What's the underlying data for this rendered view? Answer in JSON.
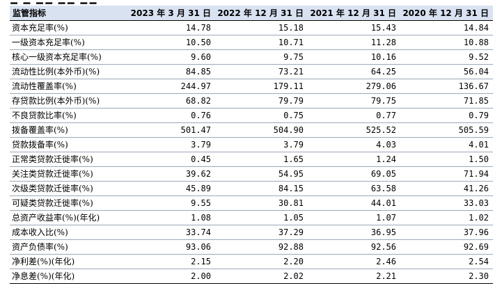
{
  "header": {
    "indicator": "监管指标",
    "periods": [
      "2023 年 3 月 31 日",
      "2022 年 12 月 31 日",
      "2021 年 12 月 31 日",
      "2020 年 12 月 31 日"
    ]
  },
  "rows": [
    {
      "label": "资本充足率(%)",
      "values": [
        "14.78",
        "15.18",
        "15.43",
        "14.84"
      ]
    },
    {
      "label": "一级资本充足率(%)",
      "values": [
        "10.50",
        "10.71",
        "11.28",
        "10.88"
      ]
    },
    {
      "label": "核心一级资本充足率(%)",
      "values": [
        "9.60",
        "9.75",
        "10.16",
        "9.52"
      ]
    },
    {
      "label": "流动性比例(本外币)(%)",
      "values": [
        "84.85",
        "73.21",
        "64.25",
        "56.04"
      ]
    },
    {
      "label": "流动性覆盖率(%)",
      "values": [
        "244.97",
        "179.11",
        "279.06",
        "136.67"
      ]
    },
    {
      "label": "存贷款比例(本外币)(%)",
      "values": [
        "68.82",
        "79.79",
        "79.75",
        "71.85"
      ]
    },
    {
      "label": "不良贷款比率(%)",
      "values": [
        "0.76",
        "0.75",
        "0.77",
        "0.79"
      ]
    },
    {
      "label": "拨备覆盖率(%)",
      "values": [
        "501.47",
        "504.90",
        "525.52",
        "505.59"
      ]
    },
    {
      "label": "贷款拨备率(%)",
      "values": [
        "3.79",
        "3.79",
        "4.03",
        "4.01"
      ]
    },
    {
      "label": "正常类贷款迁徙率(%)",
      "values": [
        "0.45",
        "1.65",
        "1.24",
        "1.50"
      ]
    },
    {
      "label": "关注类贷款迁徙率(%)",
      "values": [
        "39.62",
        "54.95",
        "69.05",
        "71.94"
      ]
    },
    {
      "label": "次级类贷款迁徙率(%)",
      "values": [
        "45.89",
        "84.15",
        "63.58",
        "41.26"
      ]
    },
    {
      "label": "可疑类贷款迁徙率(%)",
      "values": [
        "9.55",
        "30.81",
        "44.01",
        "33.03"
      ]
    },
    {
      "label": "总资产收益率(%)(年化)",
      "values": [
        "1.08",
        "1.05",
        "1.07",
        "1.02"
      ]
    },
    {
      "label": "成本收入比(%)",
      "values": [
        "33.74",
        "37.29",
        "36.95",
        "37.96"
      ]
    },
    {
      "label": "资产负债率(%)",
      "values": [
        "93.06",
        "92.88",
        "92.56",
        "92.69"
      ]
    },
    {
      "label": "净利差(%)(年化)",
      "values": [
        "2.15",
        "2.20",
        "2.46",
        "2.54"
      ]
    },
    {
      "label": "净息差(%)(年化)",
      "values": [
        "2.00",
        "2.02",
        "2.21",
        "2.30"
      ]
    }
  ]
}
